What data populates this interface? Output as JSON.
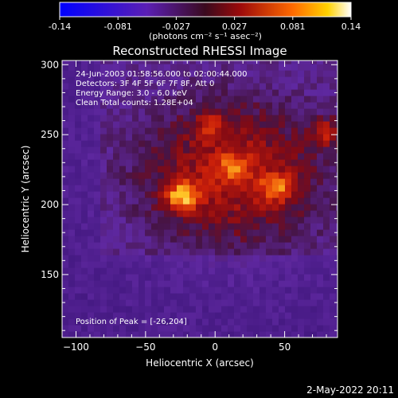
{
  "chart_data": {
    "type": "heatmap",
    "title": "Reconstructed RHESSI Image",
    "xlabel": "Heliocentric X (arcsec)",
    "ylabel": "Heliocentric Y (arcsec)",
    "xlim": [
      -110,
      88
    ],
    "ylim": [
      105,
      303
    ],
    "x_ticks": [
      -100,
      -50,
      0,
      50
    ],
    "y_ticks": [
      150,
      200,
      250,
      300
    ],
    "colorbar": {
      "ticks": [
        "-0.14",
        "-0.081",
        "-0.027",
        "0.027",
        "0.081",
        "0.14"
      ],
      "range": [
        -0.14,
        0.14
      ],
      "label": "(photons cm⁻² s⁻¹ asec⁻²)"
    },
    "annotations": [
      "24-Jun-2003 01:58:56.000 to 02:00:44.000",
      "Detectors: 3F 4F 5F 6F 7F 8F, Att 0",
      "Energy Range: 3.0 - 6.0 keV",
      "Clean     Total counts: 1.28E+04"
    ],
    "peak_label": "Position of Peak = [-26,204]",
    "peak": {
      "x": -26,
      "y": 204,
      "value": 0.14
    },
    "sources": [
      {
        "x": -26,
        "y": 204,
        "value": 0.14
      },
      {
        "x": 42,
        "y": 210,
        "value": 0.1
      },
      {
        "x": 78,
        "y": 250,
        "value": 0.09
      },
      {
        "x": 10,
        "y": 225,
        "value": 0.07
      },
      {
        "x": -5,
        "y": 255,
        "value": 0.06
      }
    ],
    "grid": false
  },
  "footer": {
    "timestamp": "2-May-2022 20:11"
  }
}
